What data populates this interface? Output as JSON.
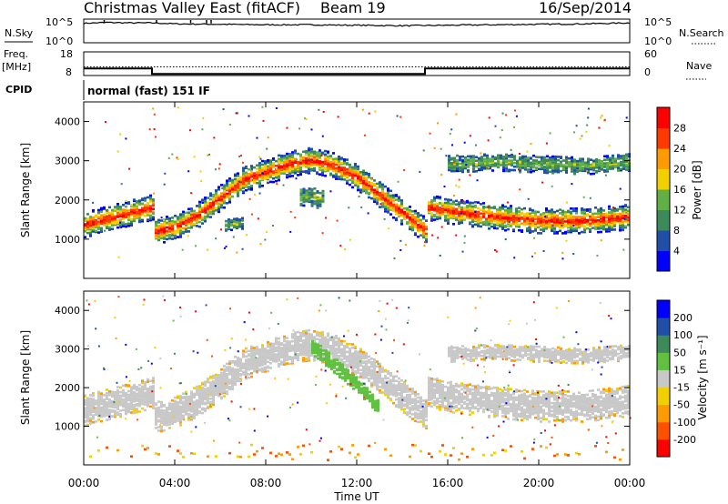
{
  "header": {
    "title": "Christmas Valley East (fitACF)",
    "beam": "Beam 19",
    "date": "16/Sep/2014"
  },
  "top_panels": {
    "nsky_label": "N.Sky",
    "nsky_ticks": [
      "10^5",
      "10^0"
    ],
    "nsearch_label": "N.Search",
    "nsearch_ticks": [
      "10^5",
      "10^0"
    ],
    "freq_label": "Freq.",
    "freq_unit": "[MHz]",
    "freq_ticks": [
      "18",
      "8"
    ],
    "nave_label": "Nave",
    "nave_ticks": [
      "60",
      "0"
    ],
    "cpid_label": "CPID",
    "cpid_text": "normal (fast) 151 IF"
  },
  "colors": {
    "power_scale": [
      "#0000ff",
      "#1f4fa8",
      "#3c8a5a",
      "#60b046",
      "#f2d000",
      "#ff9a00",
      "#ff3a00",
      "#ff0000"
    ],
    "velocity_scale": [
      "#0000ff",
      "#1f4fa8",
      "#3c8a5a",
      "#60c040",
      "#c8c8c8",
      "#f2d000",
      "#ff9a00",
      "#ff5000",
      "#ff0000"
    ],
    "ground_scatter": "#c8c8c8"
  },
  "chart_data": [
    {
      "type": "line",
      "panel": "N.Sky / N.Search",
      "x": [
        0,
        1,
        2,
        3,
        4,
        6,
        8,
        10,
        12,
        14,
        16,
        18,
        20,
        22,
        24
      ],
      "y_log10": [
        4.1,
        4.3,
        4.2,
        4.2,
        4.0,
        3.9,
        3.8,
        3.8,
        3.7,
        3.6,
        3.7,
        3.8,
        3.9,
        4.0,
        4.2
      ],
      "spikes_x": [
        0.9,
        3.2,
        4.7,
        5.4,
        5.6
      ],
      "ylim": [
        "10^0",
        "10^5"
      ]
    },
    {
      "type": "line",
      "panel": "Freq / Nave",
      "series": [
        {
          "name": "Freq.",
          "x": [
            0,
            3,
            3,
            15,
            15,
            24
          ],
          "y": [
            11,
            11,
            8.7,
            8.7,
            11,
            11
          ]
        },
        {
          "name": "Nave",
          "x": [
            0,
            24
          ],
          "y": [
            22,
            22
          ]
        }
      ],
      "freq_ylim": [
        8,
        18
      ],
      "nave_ylim": [
        0,
        60
      ]
    },
    {
      "type": "heatmap",
      "panel": "Power",
      "xlabel": "",
      "ylabel": "Slant Range [km]",
      "xlim": [
        0,
        24
      ],
      "ylim": [
        0,
        4500
      ],
      "yticks": [
        1000,
        2000,
        3000,
        4000
      ],
      "colorbar_label": "Power [dB]",
      "colorbar_ticks": [
        4,
        8,
        12,
        16,
        20,
        24,
        28
      ],
      "colorbar_range": [
        0,
        30
      ],
      "features": [
        {
          "kind": "strong_band",
          "x": [
            0,
            1,
            2,
            3,
            3,
            4,
            5,
            6,
            7,
            8,
            9,
            10,
            11,
            12,
            13,
            14,
            15,
            15,
            16,
            18,
            20,
            22,
            24
          ],
          "y": [
            1400,
            1550,
            1700,
            1850,
            1200,
            1350,
            1650,
            2100,
            2550,
            2750,
            2950,
            3050,
            2900,
            2600,
            2150,
            1700,
            1250,
            1850,
            1750,
            1600,
            1500,
            1500,
            1600
          ],
          "width_km": 320
        },
        {
          "kind": "upper_echo",
          "x": [
            16,
            18,
            20,
            22,
            24
          ],
          "y": [
            2950,
            3000,
            2950,
            2900,
            3000
          ],
          "width_km": 220
        },
        {
          "kind": "patch",
          "x": [
            9.5,
            10.5
          ],
          "y": [
            2150,
            2050
          ],
          "width_km": 250
        },
        {
          "kind": "patch",
          "x": [
            6.2,
            7.0
          ],
          "y": [
            1400,
            1450
          ],
          "width_km": 150
        }
      ]
    },
    {
      "type": "heatmap",
      "panel": "Velocity",
      "xlabel": "Time UT",
      "ylabel": "Slant Range [km]",
      "xlim": [
        0,
        24
      ],
      "ylim": [
        0,
        4500
      ],
      "xticks": [
        "00:00",
        "04:00",
        "08:00",
        "12:00",
        "16:00",
        "20:00",
        "00:00"
      ],
      "yticks": [
        1000,
        2000,
        3000,
        4000
      ],
      "colorbar_label": "Velocity [m s⁻¹]",
      "colorbar_ticks": [
        200,
        100,
        50,
        15,
        -15,
        -50,
        -100,
        -200
      ],
      "features": [
        {
          "kind": "ground_scatter_band",
          "x": [
            0,
            1,
            2,
            3,
            3,
            4,
            5,
            6,
            7,
            8,
            9,
            10,
            11,
            12,
            13,
            14,
            15,
            15,
            16,
            18,
            20,
            22,
            24
          ],
          "y": [
            1450,
            1600,
            1750,
            1900,
            1250,
            1400,
            1700,
            2150,
            2650,
            2850,
            3050,
            3150,
            3000,
            2700,
            2250,
            1800,
            1350,
            1950,
            1800,
            1650,
            1550,
            1550,
            1700
          ],
          "width_km": 400
        },
        {
          "kind": "upper_ground_scatter",
          "x": [
            16,
            18,
            20,
            22,
            24
          ],
          "y": [
            2900,
            2950,
            2900,
            2850,
            2950
          ],
          "width_km": 200
        },
        {
          "kind": "negative_velocity_streak",
          "x": [
            10,
            11,
            12,
            13
          ],
          "y": [
            3100,
            2600,
            2100,
            1500
          ],
          "velocity": 50
        },
        {
          "kind": "low_range_noise",
          "x": [
            8,
            16
          ],
          "y": [
            200,
            200
          ],
          "velocity": -50
        }
      ]
    }
  ]
}
